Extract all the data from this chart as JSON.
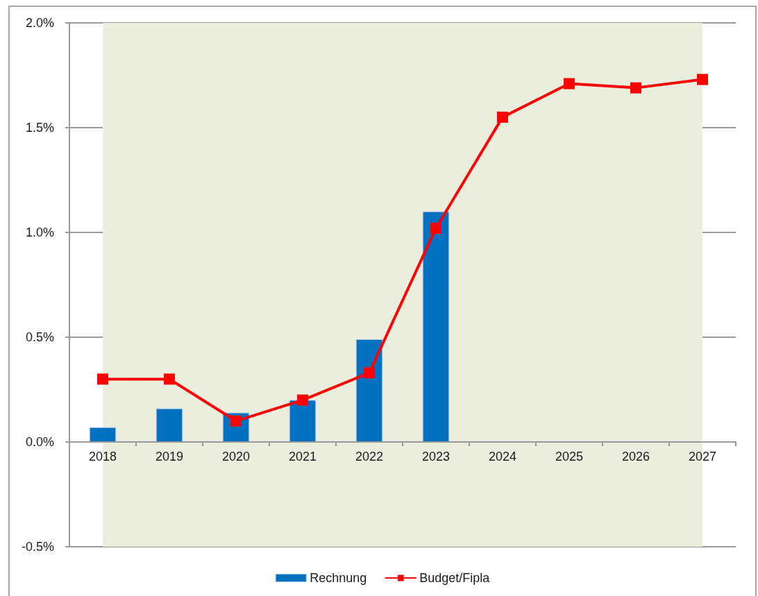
{
  "chart_data": {
    "type": "bar",
    "categories": [
      "2018",
      "2019",
      "2020",
      "2021",
      "2022",
      "2023",
      "2024",
      "2025",
      "2026",
      "2027"
    ],
    "series": [
      {
        "name": "Rechnung",
        "color": "#0070c0",
        "values": [
          0.07,
          0.16,
          0.14,
          0.2,
          0.49,
          1.1,
          null,
          null,
          null,
          null
        ]
      },
      {
        "name": "Budget/Fipla",
        "type": "line",
        "color": "#ff0000",
        "values": [
          0.3,
          0.3,
          0.1,
          0.2,
          0.33,
          1.02,
          1.55,
          1.71,
          1.69,
          1.73
        ]
      }
    ],
    "ylim": [
      -0.5,
      2
    ],
    "yticks": [
      {
        "value": -0.5,
        "label": "-0.5%"
      },
      {
        "value": 0,
        "label": "0.0%"
      },
      {
        "value": 0.5,
        "label": "0.5%"
      },
      {
        "value": 1,
        "label": "1.0%"
      },
      {
        "value": 1.5,
        "label": "1.5%"
      },
      {
        "value": 2,
        "label": "2.0%"
      }
    ],
    "bands": [
      {
        "axis": "x",
        "from": "2018",
        "to": "2027",
        "color": "#eaeedd"
      }
    ],
    "grid": "y",
    "legend": "bottom",
    "marker": "square",
    "line_style": "solid"
  }
}
